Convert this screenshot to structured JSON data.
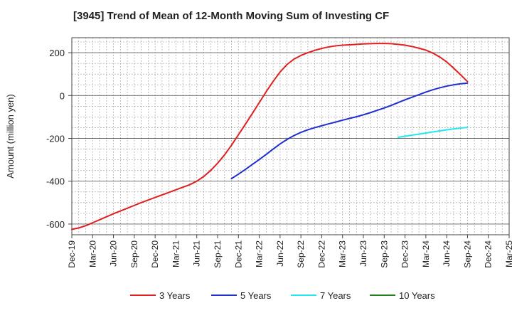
{
  "chart_data": {
    "type": "line",
    "title": "[3945]  Trend of Mean of 12-Month Moving Sum of Investing CF",
    "ylabel": "Amount (million yen)",
    "xlabel": "",
    "x_ticks": [
      "Dec-19",
      "Mar-20",
      "Jun-20",
      "Sep-20",
      "Dec-20",
      "Mar-21",
      "Jun-21",
      "Sep-21",
      "Dec-21",
      "Mar-22",
      "Jun-22",
      "Sep-22",
      "Dec-22",
      "Mar-23",
      "Jun-23",
      "Sep-23",
      "Dec-23",
      "Mar-24",
      "Jun-24",
      "Sep-24",
      "Dec-24",
      "Mar-25"
    ],
    "y_ticks": [
      200,
      0,
      -200,
      -400,
      -600
    ],
    "ylim": [
      -650,
      270
    ],
    "grid": true,
    "legend_position": "bottom",
    "series": [
      {
        "name": "3 Years",
        "color": "#e02020",
        "points": [
          [
            "Dec-19",
            -625
          ],
          [
            "Jan-20",
            -618
          ],
          [
            "Feb-20",
            -608
          ],
          [
            "Mar-20",
            -594
          ],
          [
            "Apr-20",
            -580
          ],
          [
            "May-20",
            -566
          ],
          [
            "Jun-20",
            -552
          ],
          [
            "Jul-20",
            -539
          ],
          [
            "Aug-20",
            -526
          ],
          [
            "Sep-20",
            -513
          ],
          [
            "Oct-20",
            -500
          ],
          [
            "Nov-20",
            -488
          ],
          [
            "Dec-20",
            -476
          ],
          [
            "Jan-21",
            -464
          ],
          [
            "Feb-21",
            -452
          ],
          [
            "Mar-21",
            -440
          ],
          [
            "Apr-21",
            -428
          ],
          [
            "May-21",
            -416
          ],
          [
            "Jun-21",
            -400
          ],
          [
            "Jul-21",
            -378
          ],
          [
            "Aug-21",
            -350
          ],
          [
            "Sep-21",
            -316
          ],
          [
            "Oct-21",
            -277
          ],
          [
            "Nov-21",
            -232
          ],
          [
            "Dec-21",
            -183
          ],
          [
            "Jan-22",
            -134
          ],
          [
            "Feb-22",
            -84
          ],
          [
            "Mar-22",
            -33
          ],
          [
            "Apr-22",
            18
          ],
          [
            "May-22",
            66
          ],
          [
            "Jun-22",
            110
          ],
          [
            "Jul-22",
            145
          ],
          [
            "Aug-22",
            170
          ],
          [
            "Sep-22",
            187
          ],
          [
            "Oct-22",
            200
          ],
          [
            "Nov-22",
            211
          ],
          [
            "Dec-22",
            220
          ],
          [
            "Jan-23",
            227
          ],
          [
            "Feb-23",
            232
          ],
          [
            "Mar-23",
            235
          ],
          [
            "Apr-23",
            237
          ],
          [
            "May-23",
            239
          ],
          [
            "Jun-23",
            241
          ],
          [
            "Jul-23",
            242
          ],
          [
            "Aug-23",
            243
          ],
          [
            "Sep-23",
            243
          ],
          [
            "Oct-23",
            242
          ],
          [
            "Nov-23",
            239
          ],
          [
            "Dec-23",
            235
          ],
          [
            "Jan-24",
            229
          ],
          [
            "Feb-24",
            221
          ],
          [
            "Mar-24",
            212
          ],
          [
            "Apr-24",
            198
          ],
          [
            "May-24",
            180
          ],
          [
            "Jun-24",
            157
          ],
          [
            "Jul-24",
            128
          ],
          [
            "Aug-24",
            97
          ],
          [
            "Sep-24",
            65
          ]
        ]
      },
      {
        "name": "5 Years",
        "color": "#1f2fd0",
        "points": [
          [
            "Nov-21",
            -388
          ],
          [
            "Dec-21",
            -367
          ],
          [
            "Jan-22",
            -345
          ],
          [
            "Feb-22",
            -322
          ],
          [
            "Mar-22",
            -299
          ],
          [
            "Apr-22",
            -275
          ],
          [
            "May-22",
            -250
          ],
          [
            "Jun-22",
            -226
          ],
          [
            "Jul-22",
            -205
          ],
          [
            "Aug-22",
            -187
          ],
          [
            "Sep-22",
            -172
          ],
          [
            "Oct-22",
            -160
          ],
          [
            "Nov-22",
            -150
          ],
          [
            "Dec-22",
            -141
          ],
          [
            "Jan-23",
            -132
          ],
          [
            "Feb-23",
            -124
          ],
          [
            "Mar-23",
            -115
          ],
          [
            "Apr-23",
            -107
          ],
          [
            "May-23",
            -99
          ],
          [
            "Jun-23",
            -90
          ],
          [
            "Jul-23",
            -80
          ],
          [
            "Aug-23",
            -69
          ],
          [
            "Sep-23",
            -58
          ],
          [
            "Oct-23",
            -46
          ],
          [
            "Nov-23",
            -33
          ],
          [
            "Dec-23",
            -20
          ],
          [
            "Jan-24",
            -8
          ],
          [
            "Feb-24",
            4
          ],
          [
            "Mar-24",
            16
          ],
          [
            "Apr-24",
            27
          ],
          [
            "May-24",
            36
          ],
          [
            "Jun-24",
            44
          ],
          [
            "Jul-24",
            50
          ],
          [
            "Aug-24",
            55
          ],
          [
            "Sep-24",
            58
          ]
        ]
      },
      {
        "name": "7 Years",
        "color": "#22e8ee",
        "points": [
          [
            "Nov-23",
            -195
          ],
          [
            "Dec-23",
            -190
          ],
          [
            "Jan-24",
            -185
          ],
          [
            "Feb-24",
            -180
          ],
          [
            "Mar-24",
            -175
          ],
          [
            "Apr-24",
            -170
          ],
          [
            "May-24",
            -165
          ],
          [
            "Jun-24",
            -160
          ],
          [
            "Jul-24",
            -156
          ],
          [
            "Aug-24",
            -152
          ],
          [
            "Sep-24",
            -149
          ]
        ]
      },
      {
        "name": "10 Years",
        "color": "#208020",
        "points": []
      }
    ]
  }
}
